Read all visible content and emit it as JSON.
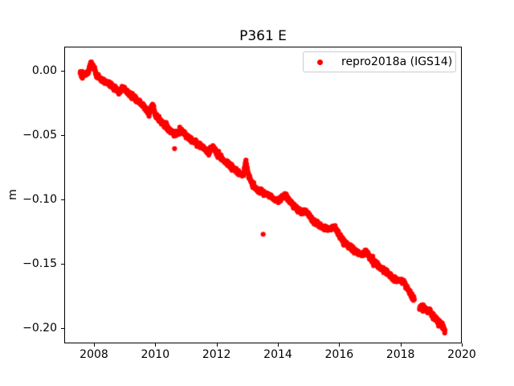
{
  "title": "P361 E",
  "ylabel": "m",
  "legend": {
    "label": "repro2018a (IGS14)",
    "marker_color": "#ff0000"
  },
  "axes": {
    "xlim": [
      2007.031,
      2020.0
    ],
    "ylim": [
      -0.21185,
      0.01875
    ],
    "xticks": [
      2008,
      2010,
      2012,
      2014,
      2016,
      2018,
      2020
    ],
    "xtick_labels": [
      "2008",
      "2010",
      "2012",
      "2014",
      "2016",
      "2018",
      "2020"
    ],
    "yticks": [
      0.0,
      -0.05,
      -0.1,
      -0.15,
      -0.2
    ],
    "ytick_labels": [
      "0.00",
      "−0.05",
      "−0.10",
      "−0.15",
      "−0.20"
    ]
  },
  "chart_data": {
    "type": "scatter",
    "title": "P361 E",
    "xlabel": "",
    "ylabel": "m",
    "xlim": [
      2007.031,
      2020.0
    ],
    "ylim": [
      -0.21185,
      0.01875
    ],
    "grid": false,
    "legend_position": "upper right",
    "series": [
      {
        "name": "repro2018a (IGS14)",
        "color": "#ff0000",
        "marker": "dot",
        "marker_diameter_px": 6.2,
        "x_start": 2007.55,
        "x_end": 2019.45,
        "sampling_interval_years": 0.00667,
        "gaps": [
          [
            2018.45,
            2018.62
          ]
        ],
        "points": [
          [
            2007.55,
            -0.001
          ],
          [
            2007.7,
            -0.0025
          ],
          [
            2007.82,
            -0.001
          ],
          [
            2007.9,
            0.0075
          ],
          [
            2008.0,
            0.002
          ],
          [
            2008.1,
            -0.004
          ],
          [
            2008.25,
            -0.007
          ],
          [
            2008.4,
            -0.009
          ],
          [
            2008.55,
            -0.011
          ],
          [
            2008.7,
            -0.014
          ],
          [
            2008.85,
            -0.016
          ],
          [
            2008.95,
            -0.013
          ],
          [
            2009.1,
            -0.017
          ],
          [
            2009.25,
            -0.02
          ],
          [
            2009.4,
            -0.023
          ],
          [
            2009.55,
            -0.026
          ],
          [
            2009.7,
            -0.03
          ],
          [
            2009.8,
            -0.033
          ],
          [
            2009.92,
            -0.026
          ],
          [
            2010.0,
            -0.034
          ],
          [
            2010.15,
            -0.038
          ],
          [
            2010.3,
            -0.042
          ],
          [
            2010.45,
            -0.046
          ],
          [
            2010.6,
            -0.049
          ],
          [
            2010.75,
            -0.049
          ],
          [
            2010.85,
            -0.047
          ],
          [
            2011.0,
            -0.05
          ],
          [
            2011.15,
            -0.053
          ],
          [
            2011.3,
            -0.056
          ],
          [
            2011.45,
            -0.058
          ],
          [
            2011.6,
            -0.061
          ],
          [
            2011.75,
            -0.063
          ],
          [
            2011.88,
            -0.059
          ],
          [
            2012.0,
            -0.064
          ],
          [
            2012.15,
            -0.068
          ],
          [
            2012.3,
            -0.071
          ],
          [
            2012.45,
            -0.074
          ],
          [
            2012.6,
            -0.077
          ],
          [
            2012.75,
            -0.08
          ],
          [
            2012.88,
            -0.081
          ],
          [
            2012.95,
            -0.07
          ],
          [
            2013.02,
            -0.079
          ],
          [
            2013.15,
            -0.088
          ],
          [
            2013.3,
            -0.092
          ],
          [
            2013.45,
            -0.094
          ],
          [
            2013.6,
            -0.0955
          ],
          [
            2013.75,
            -0.097
          ],
          [
            2013.9,
            -0.1
          ],
          [
            2014.05,
            -0.101
          ],
          [
            2014.2,
            -0.0965
          ],
          [
            2014.35,
            -0.1
          ],
          [
            2014.5,
            -0.104
          ],
          [
            2014.65,
            -0.108
          ],
          [
            2014.8,
            -0.11
          ],
          [
            2014.92,
            -0.109
          ],
          [
            2015.1,
            -0.115
          ],
          [
            2015.25,
            -0.118
          ],
          [
            2015.4,
            -0.121
          ],
          [
            2015.55,
            -0.1225
          ],
          [
            2015.7,
            -0.123
          ],
          [
            2015.85,
            -0.121
          ],
          [
            2016.0,
            -0.128
          ],
          [
            2016.15,
            -0.133
          ],
          [
            2016.3,
            -0.136
          ],
          [
            2016.45,
            -0.139
          ],
          [
            2016.6,
            -0.141
          ],
          [
            2016.75,
            -0.143
          ],
          [
            2016.88,
            -0.14
          ],
          [
            2017.0,
            -0.145
          ],
          [
            2017.15,
            -0.149
          ],
          [
            2017.3,
            -0.152
          ],
          [
            2017.45,
            -0.155
          ],
          [
            2017.6,
            -0.158
          ],
          [
            2017.75,
            -0.161
          ],
          [
            2017.88,
            -0.163
          ],
          [
            2018.0,
            -0.1635
          ],
          [
            2018.1,
            -0.164
          ],
          [
            2018.22,
            -0.169
          ],
          [
            2018.32,
            -0.173
          ],
          [
            2018.42,
            -0.177
          ],
          [
            2018.63,
            -0.1835
          ],
          [
            2018.75,
            -0.1835
          ],
          [
            2018.85,
            -0.186
          ],
          [
            2018.95,
            -0.1865
          ],
          [
            2019.05,
            -0.19
          ],
          [
            2019.15,
            -0.192
          ],
          [
            2019.25,
            -0.1955
          ],
          [
            2019.33,
            -0.196
          ],
          [
            2019.4,
            -0.1995
          ],
          [
            2019.45,
            -0.201
          ]
        ],
        "outliers": [
          [
            2010.63,
            -0.0605
          ],
          [
            2010.8,
            -0.0438
          ],
          [
            2013.52,
            -0.127
          ]
        ]
      }
    ]
  }
}
